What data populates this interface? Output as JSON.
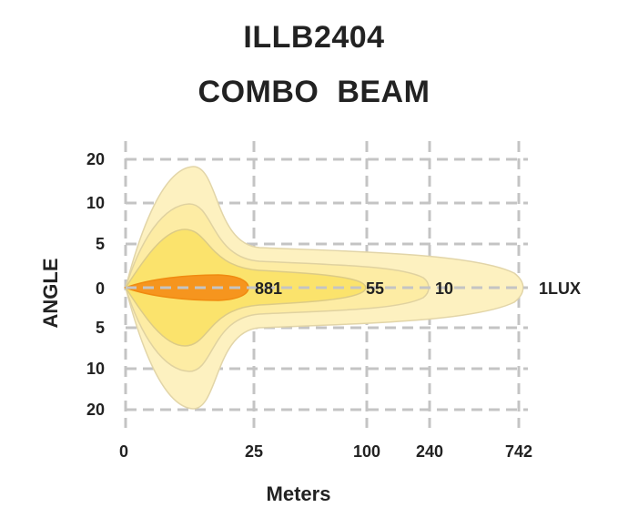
{
  "chart_data": {
    "type": "area",
    "title": "ILLB2404",
    "subtitle": "COMBO  BEAM",
    "xlabel": "Meters",
    "ylabel": "ANGLE",
    "x_ticks": [
      "0",
      "25",
      "100",
      "240",
      "742"
    ],
    "y_ticks_upper": [
      "20",
      "10",
      "5"
    ],
    "y_tick_center": "0",
    "y_ticks_lower": [
      "5",
      "10",
      "20"
    ],
    "series": [
      {
        "name": "1LUX",
        "reach": "742",
        "color": "#fdf1c0"
      },
      {
        "name": "10",
        "reach": "240",
        "color": "#fdeca4"
      },
      {
        "name": "55",
        "reach": "100",
        "color": "#fbe36c"
      },
      {
        "name": "881",
        "reach": "25",
        "color": "#f6951e"
      }
    ],
    "grid": true
  }
}
